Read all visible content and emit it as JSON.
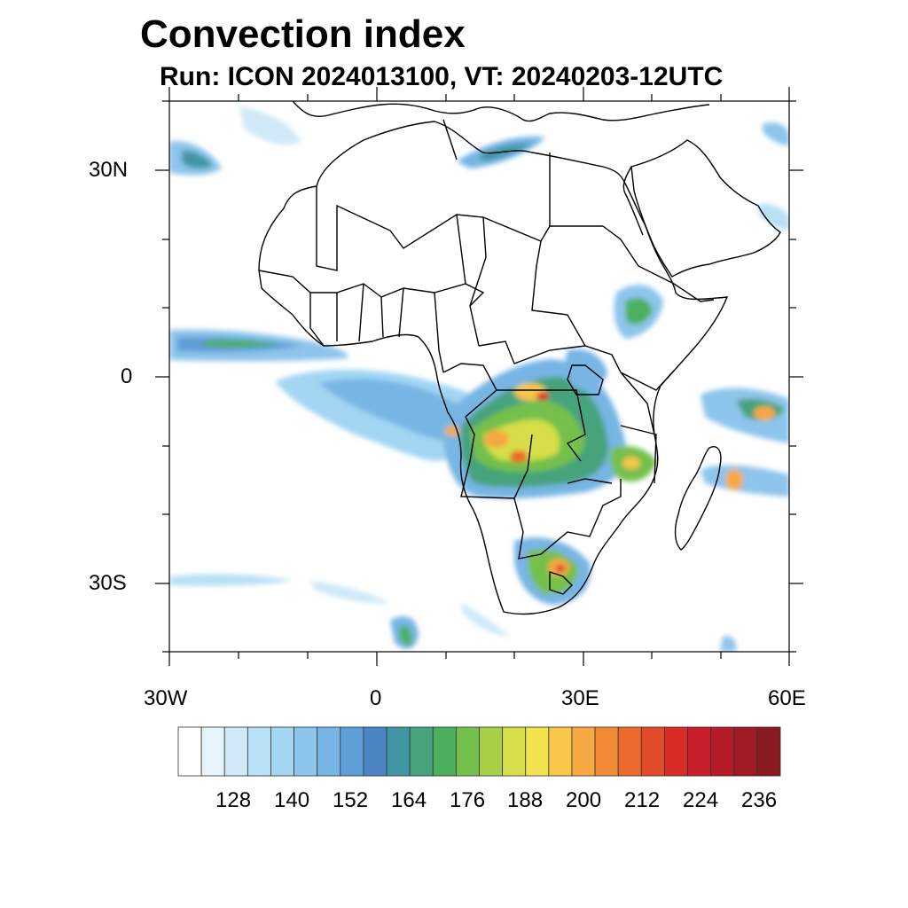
{
  "title": "Convection index",
  "subtitle": "Run: ICON 2024013100,  VT: 20240203-12UTC",
  "axes": {
    "lat_labels": [
      "30N",
      "0",
      "30S"
    ],
    "lon_labels": [
      "30W",
      "0",
      "30E",
      "60E"
    ]
  },
  "colorbar": {
    "tick_labels": [
      "128",
      "140",
      "152",
      "164",
      "176",
      "188",
      "200",
      "212",
      "224",
      "236"
    ],
    "colors": [
      "#ffffff",
      "#e8f4fc",
      "#cfe9f8",
      "#b8e0f6",
      "#a2d6f3",
      "#8dc5ec",
      "#77b5e4",
      "#5e9ed6",
      "#4a86c3",
      "#4196a6",
      "#46a37b",
      "#4bb05e",
      "#74c04c",
      "#a8cf48",
      "#d6df4a",
      "#f2e24e",
      "#f8c64a",
      "#f6a842",
      "#f28b35",
      "#eb6a2c",
      "#e24b27",
      "#d92c27",
      "#c81f2b",
      "#b51b28",
      "#9e1a24",
      "#8a1a1f"
    ]
  },
  "map": {
    "domain": "Africa / Arabia",
    "lon_range": [
      -30,
      60
    ],
    "lat_range": [
      -40,
      40
    ]
  }
}
